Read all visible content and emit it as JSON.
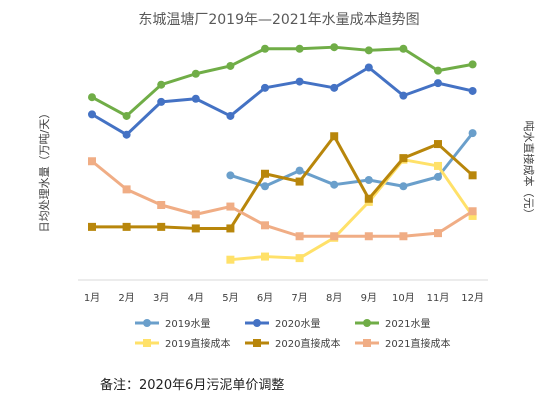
{
  "chart_data": {
    "type": "line",
    "title": "东城温塘厂2019年—2021年水量成本趋势图",
    "ylabel_left": "日均处理水量（万吨/天）",
    "ylabel_right": "吨水直接成本（元）",
    "categories": [
      "1月",
      "2月",
      "3月",
      "4月",
      "5月",
      "6月",
      "7月",
      "8月",
      "9月",
      "10月",
      "11月",
      "12月"
    ],
    "volume_axis": [
      0,
      16
    ],
    "cost_axis": [
      0,
      1.6
    ],
    "grid": false,
    "legend_position": "bottom",
    "series": [
      {
        "name": "2019水量",
        "axis": "volume",
        "color": "#6A9FCB",
        "marker": "circle",
        "values": [
          null,
          null,
          null,
          null,
          6.7,
          6.0,
          7.0,
          6.1,
          6.4,
          6.0,
          6.6,
          9.4
        ]
      },
      {
        "name": "2020水量",
        "axis": "volume",
        "color": "#4472C4",
        "marker": "circle",
        "values": [
          10.6,
          9.3,
          11.4,
          11.6,
          10.5,
          12.3,
          12.7,
          12.3,
          13.6,
          11.8,
          12.6,
          12.1
        ]
      },
      {
        "name": "2021水量",
        "axis": "volume",
        "color": "#70AD47",
        "marker": "circle",
        "values": [
          11.7,
          10.5,
          12.5,
          13.2,
          13.7,
          14.8,
          14.8,
          14.9,
          14.7,
          14.8,
          13.4,
          13.8
        ]
      },
      {
        "name": "2019直接成本",
        "axis": "cost",
        "color": "#FFE169",
        "marker": "square",
        "values": [
          null,
          null,
          null,
          null,
          0.13,
          0.15,
          0.14,
          0.27,
          0.5,
          0.77,
          0.73,
          0.41
        ]
      },
      {
        "name": "2020直接成本",
        "axis": "cost",
        "color": "#B8860B",
        "marker": "square",
        "values": [
          0.34,
          0.34,
          0.34,
          0.33,
          0.33,
          0.68,
          0.63,
          0.92,
          0.52,
          0.78,
          0.87,
          0.67
        ]
      },
      {
        "name": "2021直接成本",
        "axis": "cost",
        "color": "#F0AD85",
        "marker": "square",
        "values": [
          0.76,
          0.58,
          0.48,
          0.42,
          0.47,
          0.35,
          0.28,
          0.28,
          0.28,
          0.28,
          0.3,
          0.44
        ]
      }
    ]
  },
  "note": "备注：2020年6月污泥单价调整"
}
